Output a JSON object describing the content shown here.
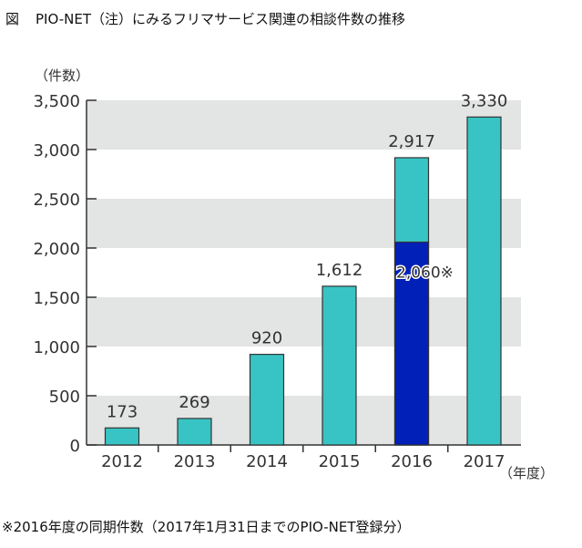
{
  "title_prefix": "図",
  "title": "PIO-NET（注）にみるフリマサービス関連の相談件数の推移",
  "footnote": "※2016年度の同期件数（2017年1月31日までのPIO-NET登録分）",
  "chart_data": {
    "type": "bar",
    "title": "PIO-NET（注）にみるフリマサービス関連の相談件数の推移",
    "xlabel": "（年度）",
    "ylabel": "（件数）",
    "ylim": [
      0,
      3500
    ],
    "yticks": [
      0,
      500,
      1000,
      1500,
      2000,
      2500,
      3000,
      3500
    ],
    "ytick_labels": [
      "0",
      "500",
      "1,000",
      "1,500",
      "2,000",
      "2,500",
      "3,000",
      "3,500"
    ],
    "categories": [
      "2012",
      "2013",
      "2014",
      "2015",
      "2016",
      "2017"
    ],
    "values": [
      173,
      269,
      920,
      1612,
      2917,
      3330
    ],
    "value_labels": [
      "173",
      "269",
      "920",
      "1,612",
      "2,917",
      "3,330"
    ],
    "overlay": {
      "category": "2016",
      "value": 2060,
      "label": "2,060※"
    },
    "colors": {
      "bar": "#38c4c4",
      "overlay": "#0020b8",
      "band": "#e3e4e4"
    },
    "grid": "alternating bands"
  }
}
